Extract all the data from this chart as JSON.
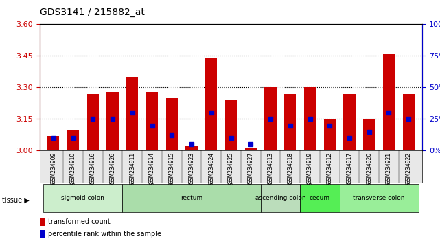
{
  "title": "GDS3141 / 215882_at",
  "samples": [
    "GSM234909",
    "GSM234910",
    "GSM234916",
    "GSM234926",
    "GSM234911",
    "GSM234914",
    "GSM234915",
    "GSM234923",
    "GSM234924",
    "GSM234925",
    "GSM234927",
    "GSM234913",
    "GSM234918",
    "GSM234919",
    "GSM234912",
    "GSM234917",
    "GSM234920",
    "GSM234921",
    "GSM234922"
  ],
  "transformed_count": [
    3.07,
    3.1,
    3.27,
    3.28,
    3.35,
    3.28,
    3.25,
    3.02,
    3.44,
    3.24,
    3.01,
    3.3,
    3.27,
    3.3,
    3.15,
    3.27,
    3.15,
    3.46,
    3.27
  ],
  "percentile_rank": [
    10,
    10,
    25,
    25,
    30,
    20,
    12,
    5,
    30,
    10,
    5,
    25,
    20,
    25,
    20,
    10,
    15,
    30,
    25
  ],
  "base_value": 3.0,
  "ylim_left": [
    3.0,
    3.6
  ],
  "ylim_right": [
    0,
    100
  ],
  "yticks_left": [
    3.0,
    3.15,
    3.3,
    3.45,
    3.6
  ],
  "yticks_right": [
    0,
    25,
    50,
    75,
    100
  ],
  "grid_values": [
    3.15,
    3.3,
    3.45
  ],
  "tissue_groups": [
    {
      "label": "sigmoid colon",
      "start": 0,
      "end": 3,
      "color": "#ccffcc"
    },
    {
      "label": "rectum",
      "start": 4,
      "end": 10,
      "color": "#aaffaa"
    },
    {
      "label": "ascending colon",
      "start": 11,
      "end": 12,
      "color": "#bbffbb"
    },
    {
      "label": "cecum",
      "start": 13,
      "end": 14,
      "color": "#66ff66"
    },
    {
      "label": "transverse colon",
      "start": 15,
      "end": 18,
      "color": "#99ff99"
    }
  ],
  "bar_color": "#cc0000",
  "dot_color": "#0000cc",
  "bg_color": "#e8e8e8",
  "plot_bg": "#ffffff",
  "xlabel_color": "#000000",
  "left_axis_color": "#cc0000",
  "right_axis_color": "#0000cc"
}
